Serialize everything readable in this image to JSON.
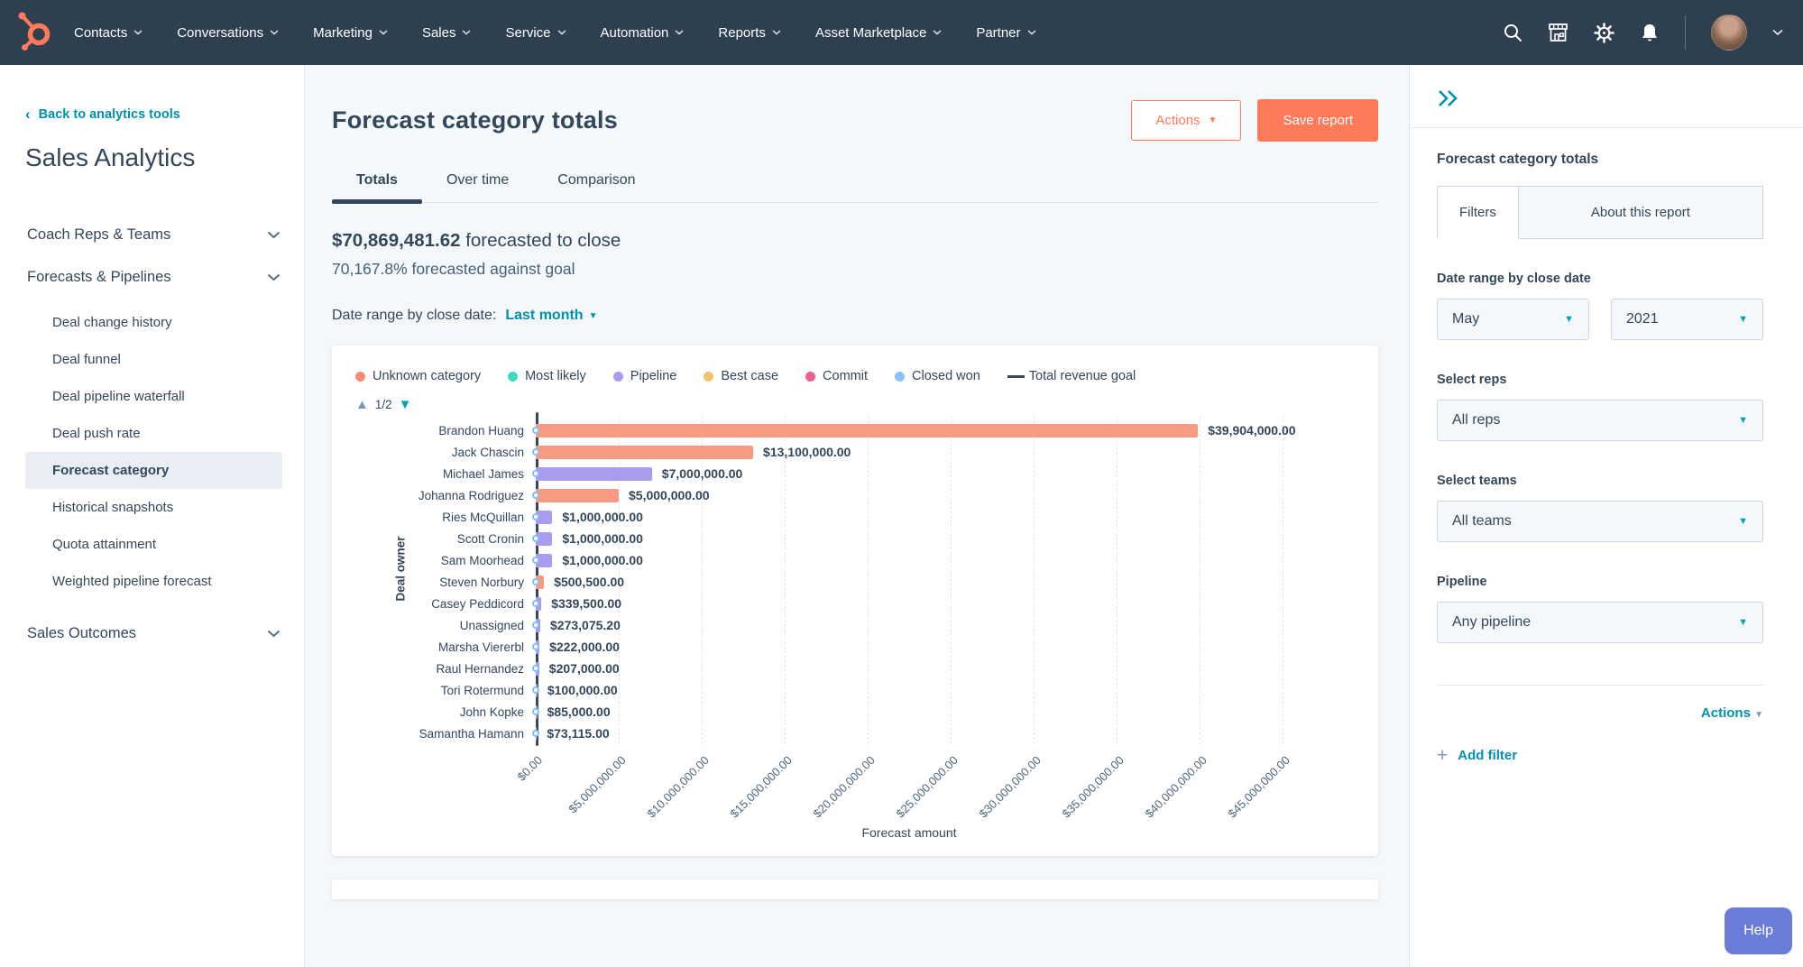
{
  "colors": {
    "nav_bg": "#2e3f50",
    "accent_orange": "#ff7a59",
    "link_teal": "#0091ae",
    "caret_teal": "#00a4bd",
    "text_navy": "#33475b",
    "goal_line": "#37485f",
    "selected_item_bg": "#e9eef4",
    "help_indigo": "#6b7cd6"
  },
  "nav": {
    "items": [
      "Contacts",
      "Conversations",
      "Marketing",
      "Sales",
      "Service",
      "Automation",
      "Reports",
      "Asset Marketplace",
      "Partner"
    ]
  },
  "sidebar": {
    "back_link": "Back to analytics tools",
    "title": "Sales Analytics",
    "groups": [
      {
        "label": "Coach Reps & Teams"
      },
      {
        "label": "Forecasts & Pipelines"
      },
      {
        "label": "Sales Outcomes"
      }
    ],
    "pipeline_items": [
      "Deal change history",
      "Deal funnel",
      "Deal pipeline waterfall",
      "Deal push rate",
      "Forecast category",
      "Historical snapshots",
      "Quota attainment",
      "Weighted pipeline forecast"
    ],
    "selected_item": "Forecast category"
  },
  "header": {
    "title": "Forecast category totals",
    "actions_label": "Actions",
    "save_label": "Save report"
  },
  "tabs": [
    {
      "label": "Totals",
      "active": true
    },
    {
      "label": "Over time",
      "active": false
    },
    {
      "label": "Comparison",
      "active": false
    }
  ],
  "summary": {
    "amount": "$70,869,481.62",
    "amount_suffix": " forecasted to close",
    "goal_text": "70,167.8% forecasted against goal"
  },
  "date_range_row": {
    "label": "Date range by close date:",
    "value": "Last month"
  },
  "chart_data": {
    "type": "bar",
    "orientation": "horizontal",
    "xlabel": "Forecast amount",
    "ylabel": "Deal owner",
    "xlim": [
      0,
      45000000
    ],
    "grid": true,
    "pagination": "1/2",
    "legend": [
      {
        "label": "Unknown category",
        "color": "#f98a73",
        "marker": "dot"
      },
      {
        "label": "Most likely",
        "color": "#3fd9c0",
        "marker": "dot"
      },
      {
        "label": "Pipeline",
        "color": "#ab9af0",
        "marker": "dot"
      },
      {
        "label": "Best case",
        "color": "#efc26e",
        "marker": "dot"
      },
      {
        "label": "Commit",
        "color": "#ee5f8e",
        "marker": "dot"
      },
      {
        "label": "Closed won",
        "color": "#86c3fd",
        "marker": "dot"
      },
      {
        "label": "Total revenue goal",
        "color": "#37485f",
        "marker": "line"
      }
    ],
    "category_colors": {
      "Unknown category": "#f89b82",
      "Pipeline": "#a99bee"
    },
    "x_ticks": [
      "$0.00",
      "$5,000,000.00",
      "$10,000,000.00",
      "$15,000,000.00",
      "$20,000,000.00",
      "$25,000,000.00",
      "$30,000,000.00",
      "$35,000,000.00",
      "$40,000,000.00",
      "$45,000,000.00"
    ],
    "bars": [
      {
        "name": "Brandon Huang",
        "value": 39904000,
        "label": "$39,904,000.00",
        "category": "Unknown category"
      },
      {
        "name": "Jack Chascin",
        "value": 13100000,
        "label": "$13,100,000.00",
        "category": "Unknown category"
      },
      {
        "name": "Michael James",
        "value": 7000000,
        "label": "$7,000,000.00",
        "category": "Pipeline"
      },
      {
        "name": "Johanna Rodriguez",
        "value": 5000000,
        "label": "$5,000,000.00",
        "category": "Unknown category"
      },
      {
        "name": "Ries McQuillan",
        "value": 1000000,
        "label": "$1,000,000.00",
        "category": "Pipeline"
      },
      {
        "name": "Scott Cronin",
        "value": 1000000,
        "label": "$1,000,000.00",
        "category": "Pipeline"
      },
      {
        "name": "Sam Moorhead",
        "value": 1000000,
        "label": "$1,000,000.00",
        "category": "Pipeline"
      },
      {
        "name": "Steven Norbury",
        "value": 500500,
        "label": "$500,500.00",
        "category": "Unknown category"
      },
      {
        "name": "Casey Peddicord",
        "value": 339500,
        "label": "$339,500.00",
        "category": "Pipeline"
      },
      {
        "name": "Unassigned",
        "value": 273075.2,
        "label": "$273,075.20",
        "category": "Pipeline"
      },
      {
        "name": "Marsha Viererbl",
        "value": 222000,
        "label": "$222,000.00",
        "category": "Pipeline"
      },
      {
        "name": "Raul Hernandez",
        "value": 207000,
        "label": "$207,000.00",
        "category": "Pipeline"
      },
      {
        "name": "Tori Rotermund",
        "value": 100000,
        "label": "$100,000.00",
        "category": "Pipeline"
      },
      {
        "name": "John Kopke",
        "value": 85000,
        "label": "$85,000.00",
        "category": "Pipeline"
      },
      {
        "name": "Samantha Hamann",
        "value": 73115,
        "label": "$73,115.00",
        "category": "Pipeline"
      }
    ],
    "total_revenue_goal_at_x": 0
  },
  "right_panel": {
    "title": "Forecast category totals",
    "tabs": [
      {
        "label": "Filters",
        "active": true
      },
      {
        "label": "About this report",
        "active": false
      }
    ],
    "filters": {
      "date_label": "Date range by close date",
      "month": "May",
      "year": "2021",
      "reps_label": "Select reps",
      "reps_value": "All reps",
      "teams_label": "Select teams",
      "teams_value": "All teams",
      "pipeline_label": "Pipeline",
      "pipeline_value": "Any pipeline"
    },
    "actions_label": "Actions",
    "add_filter_label": "Add filter"
  },
  "help_label": "Help"
}
